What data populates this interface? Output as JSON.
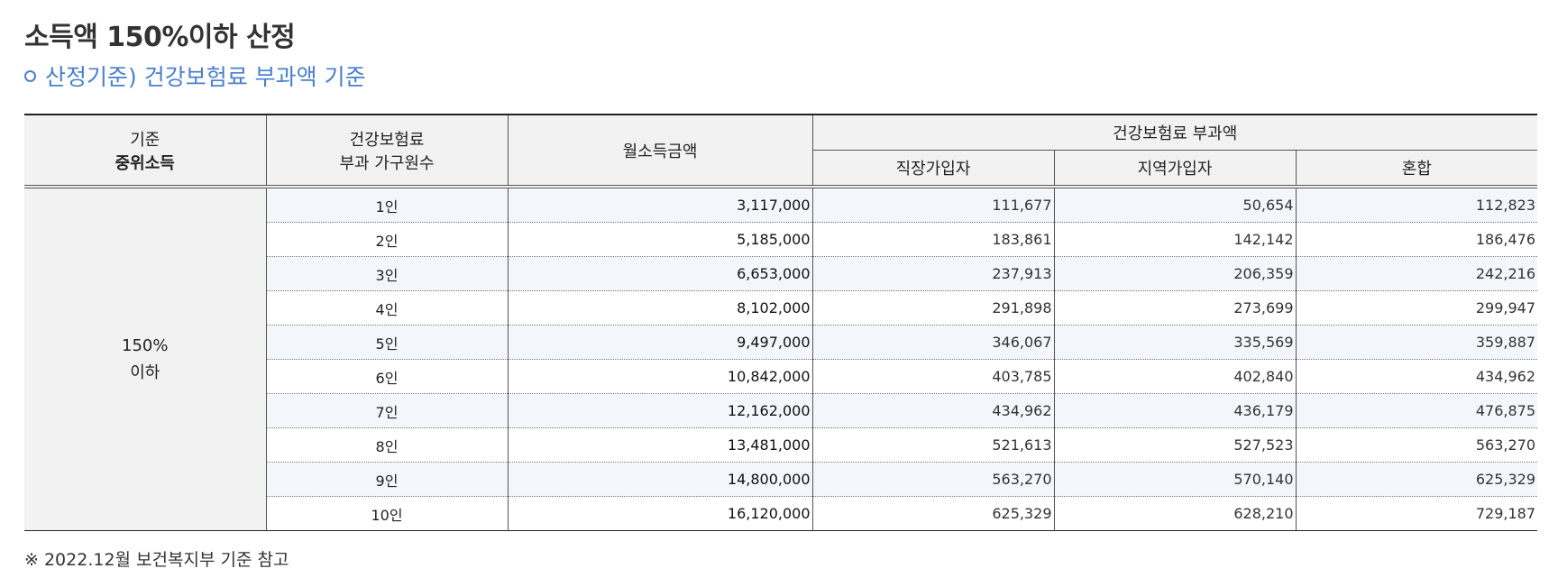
{
  "heading": "소득액 150%이하 산정",
  "subheading": "산정기준) 건강보험료 부과액 기준",
  "table": {
    "headers": {
      "standard_line1": "기준",
      "standard_line2": "중위소득",
      "household_line1": "건강보험료",
      "household_line2": "부과 가구원수",
      "income": "월소득금액",
      "premium_group": "건강보험료 부과액",
      "employee": "직장가입자",
      "regional": "지역가입자",
      "mixed": "혼합"
    },
    "standard_line1": "150%",
    "standard_line2": "이하",
    "rows": [
      {
        "household": "1인",
        "income": "3,117,000",
        "employee": "111,677",
        "regional": "50,654",
        "mixed": "112,823"
      },
      {
        "household": "2인",
        "income": "5,185,000",
        "employee": "183,861",
        "regional": "142,142",
        "mixed": "186,476"
      },
      {
        "household": "3인",
        "income": "6,653,000",
        "employee": "237,913",
        "regional": "206,359",
        "mixed": "242,216"
      },
      {
        "household": "4인",
        "income": "8,102,000",
        "employee": "291,898",
        "regional": "273,699",
        "mixed": "299,947"
      },
      {
        "household": "5인",
        "income": "9,497,000",
        "employee": "346,067",
        "regional": "335,569",
        "mixed": "359,887"
      },
      {
        "household": "6인",
        "income": "10,842,000",
        "employee": "403,785",
        "regional": "402,840",
        "mixed": "434,962"
      },
      {
        "household": "7인",
        "income": "12,162,000",
        "employee": "434,962",
        "regional": "436,179",
        "mixed": "476,875"
      },
      {
        "household": "8인",
        "income": "13,481,000",
        "employee": "521,613",
        "regional": "527,523",
        "mixed": "563,270"
      },
      {
        "household": "9인",
        "income": "14,800,000",
        "employee": "563,270",
        "regional": "570,140",
        "mixed": "625,329"
      },
      {
        "household": "10인",
        "income": "16,120,000",
        "employee": "625,329",
        "regional": "628,210",
        "mixed": "729,187"
      }
    ]
  },
  "footnote": "※ 2022.12월 보건복지부 기준 참고"
}
